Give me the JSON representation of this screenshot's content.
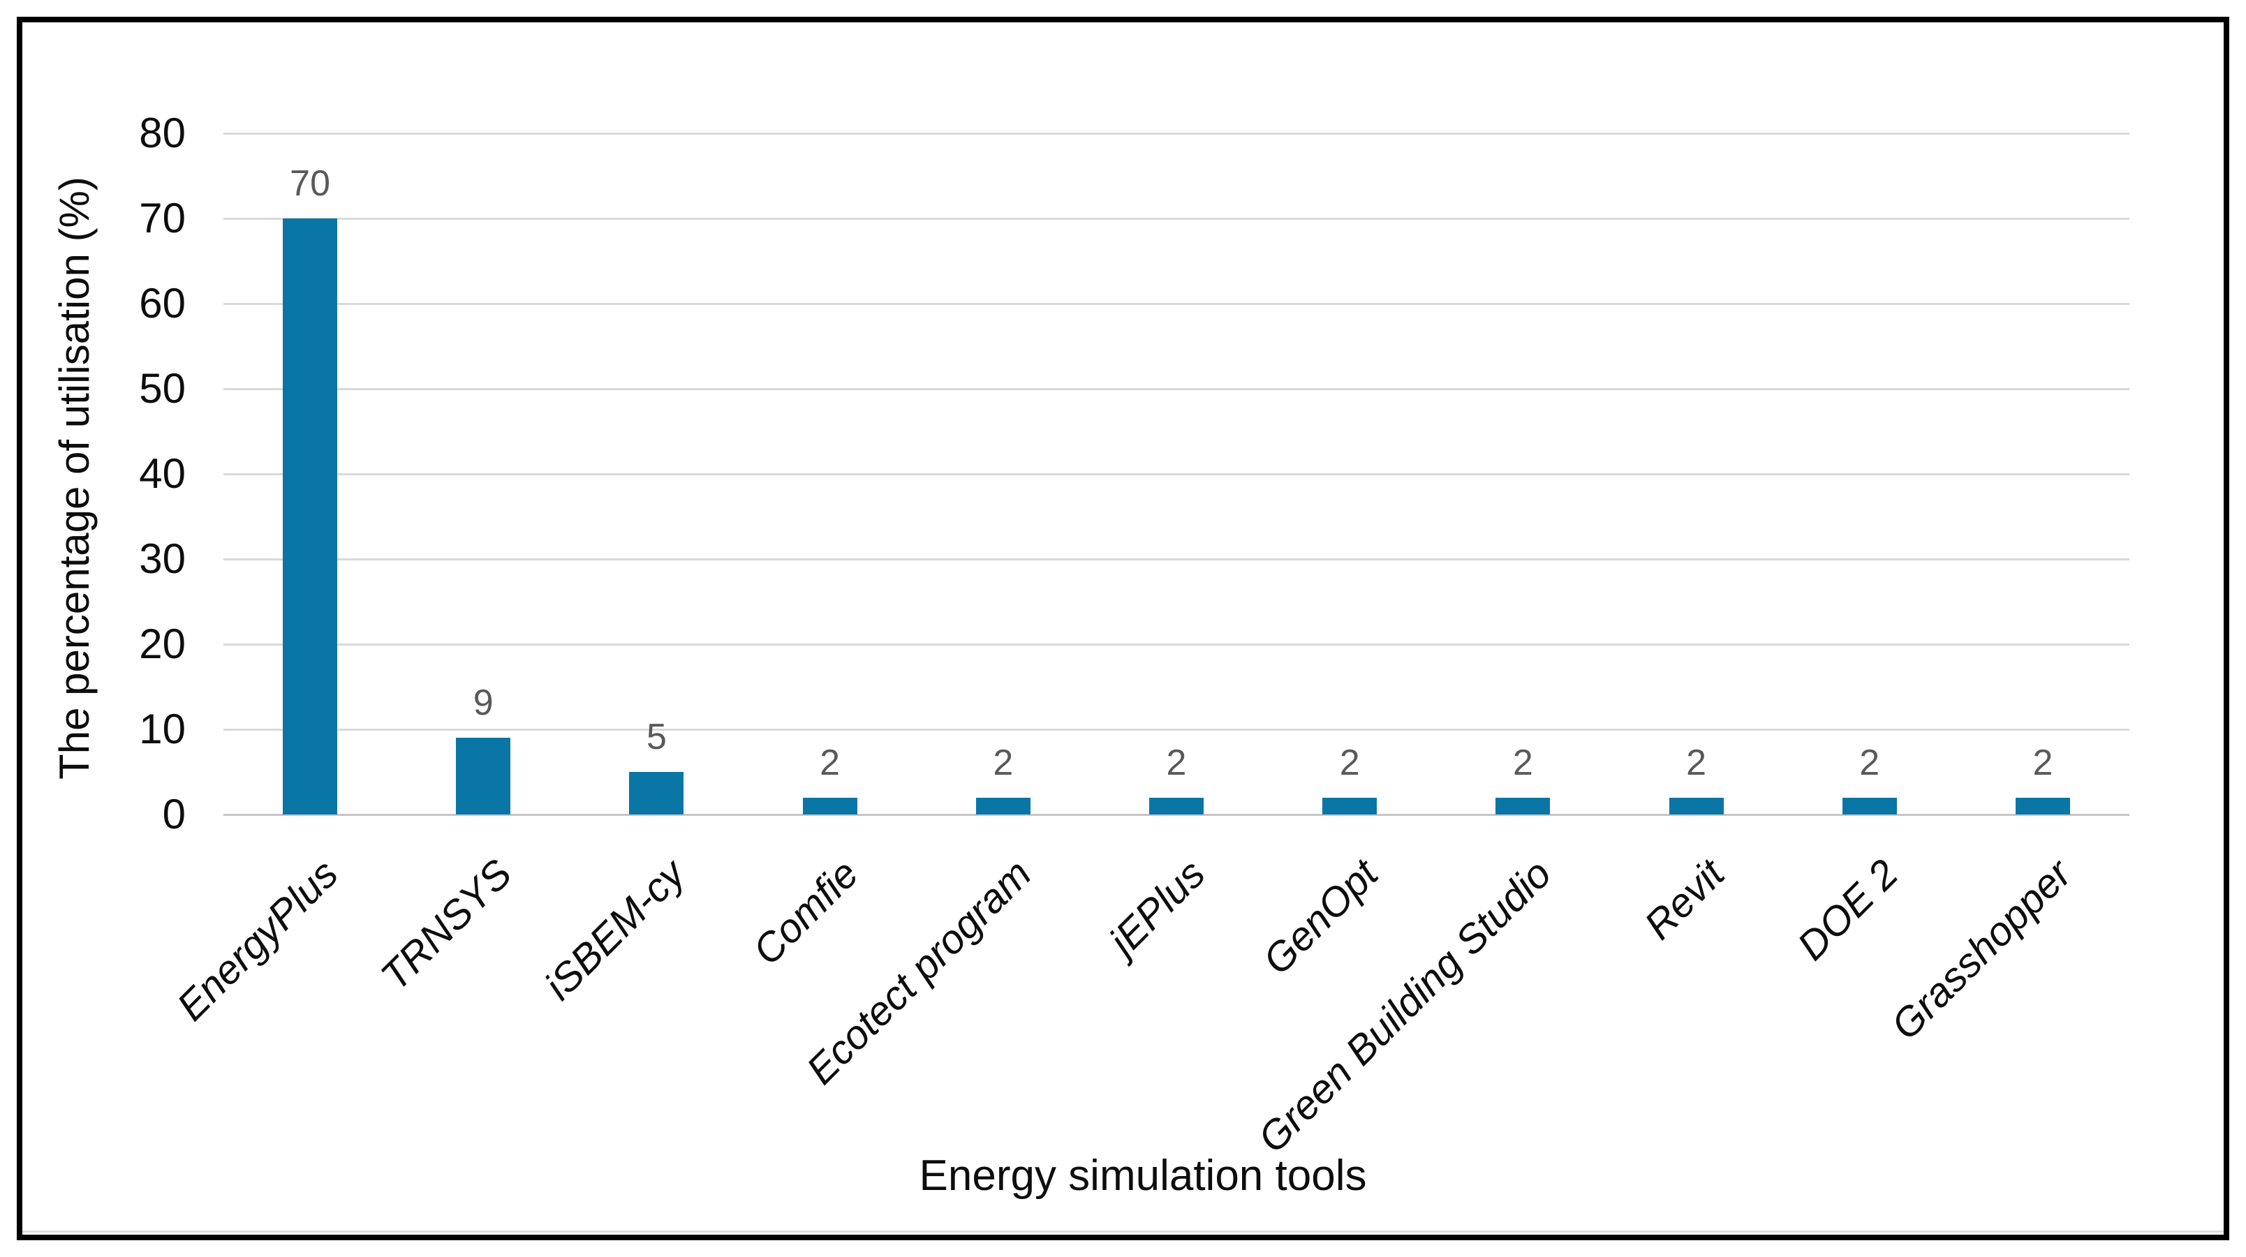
{
  "figure": {
    "background_color": "#FFFFFF",
    "border_color": "#000000"
  },
  "chart_data": {
    "type": "bar",
    "title": "",
    "xlabel": "Energy simulation tools",
    "ylabel": "The percentage of utilisation (%)",
    "categories": [
      "EnergyPlus",
      "TRNSYS",
      "iSBEM-cy",
      "Comfie",
      "Ecotect program",
      "jEPlus",
      "GenOpt",
      "Green Building Studio",
      "Revit",
      "DOE 2",
      "Grasshopper"
    ],
    "values": [
      70,
      9,
      5,
      2,
      2,
      2,
      2,
      2,
      2,
      2,
      2
    ],
    "data_labels": [
      "70",
      "9",
      "5",
      "2",
      "2",
      "2",
      "2",
      "2",
      "2",
      "2",
      "2"
    ],
    "ylim": [
      0,
      80
    ],
    "yticks": [
      0,
      10,
      20,
      30,
      40,
      50,
      60,
      70,
      80
    ],
    "grid": "horizontal",
    "legend": "none",
    "bar_color": "#0A76A6",
    "data_label_color": "#595959",
    "axis_text_color": "#0D0D0D",
    "gridline_color": "#D9D9D9",
    "axis_line_color": "#C6C6C6"
  }
}
